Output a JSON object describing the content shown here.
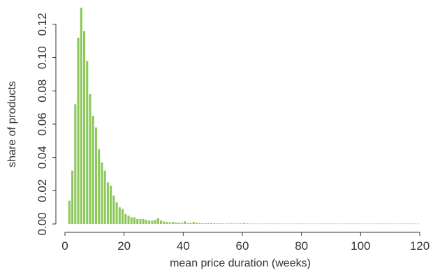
{
  "chart_data": {
    "type": "bar",
    "title": "",
    "xlabel": "mean price duration (weeks)",
    "ylabel": "share of products",
    "xlim": [
      0,
      120
    ],
    "ylim": [
      0,
      0.13
    ],
    "x_ticks": [
      0,
      20,
      40,
      60,
      80,
      100,
      120
    ],
    "y_ticks": [
      0.0,
      0.02,
      0.04,
      0.06,
      0.08,
      0.1,
      0.12
    ],
    "x_tick_labels": [
      "0",
      "20",
      "40",
      "60",
      "80",
      "100",
      "120"
    ],
    "y_tick_labels": [
      "0.00",
      "0.02",
      "0.04",
      "0.06",
      "0.08",
      "0.10",
      "0.12"
    ],
    "bar_color": "#8cc85a",
    "grid": false,
    "series": [
      {
        "x": [
          1.5,
          2.5,
          3.5,
          4.5,
          5.5,
          6.5,
          7.5,
          8.5,
          9.5,
          10.5,
          11.5,
          12.5,
          13.5,
          14.5,
          15.5,
          16.5,
          17.5,
          18.5,
          19.5,
          20.5,
          21.5,
          22.5,
          23.5,
          24.5,
          25.5,
          26.5,
          27.5,
          28.5,
          29.5,
          30.5,
          31.5,
          32.5,
          33.5,
          34.5,
          35.5,
          36.5,
          37.5,
          38.5,
          39.5,
          40.5,
          41.5,
          42.5,
          43.5,
          44.5,
          45.5,
          46.5,
          47.5,
          48.5,
          49.5,
          50.5,
          51.5,
          52.5,
          53.5,
          54.5,
          55.5,
          56.5,
          57.5,
          58.5,
          59.5,
          60.5,
          61.5,
          62.5,
          63.5,
          64.5,
          65.5,
          66.5,
          67.5,
          68.5,
          69.5,
          70.5,
          71.5,
          72.5,
          73.5,
          74.5,
          75.5,
          76.5,
          77.5,
          78.5,
          79.5,
          80.5,
          81.5,
          82.5,
          83.5,
          84.5,
          85.5,
          86.5,
          87.5,
          88.5,
          89.5,
          90.5,
          91.5,
          92.5,
          93.5,
          94.5,
          95.5,
          96.5,
          97.5,
          98.5,
          99.5,
          100.5,
          101.5,
          102.5,
          103.5,
          104.5,
          105.5,
          106.5,
          107.5,
          108.5,
          109.5,
          110.5,
          111.5,
          112.5,
          113.5,
          114.5,
          115.5,
          116.5,
          117.5,
          118.5,
          119.5
        ],
        "values": [
          0.014,
          0.032,
          0.072,
          0.112,
          0.13,
          0.116,
          0.098,
          0.078,
          0.065,
          0.058,
          0.045,
          0.037,
          0.032,
          0.025,
          0.023,
          0.017,
          0.013,
          0.01,
          0.009,
          0.006,
          0.005,
          0.004,
          0.004,
          0.003,
          0.003,
          0.003,
          0.0025,
          0.002,
          0.002,
          0.0025,
          0.0035,
          0.0022,
          0.0015,
          0.0012,
          0.001,
          0.0012,
          0.0009,
          0.0008,
          0.0008,
          0.0016,
          0.0006,
          0.0006,
          0.0012,
          0.0007,
          0.0005,
          0.0005,
          0.0004,
          0.0004,
          0.0004,
          0.0004,
          0.0003,
          0.0003,
          0.0003,
          0.0003,
          0.0003,
          0.0003,
          0.0003,
          0.0003,
          0.0003,
          0.0006,
          0.0003,
          0.0002,
          0.0002,
          0.0002,
          0.0002,
          0.0002,
          0.0002,
          0.0002,
          0.0002,
          0.0002,
          0.0002,
          0.0002,
          0.0002,
          0.0002,
          0.0002,
          0.0002,
          0.0002,
          0.0002,
          0.0002,
          0.0002,
          0.0002,
          0.0002,
          0.0002,
          0.0002,
          0.0002,
          0.0002,
          0.0002,
          0.0002,
          0.0002,
          0.0002,
          0.0002,
          0.0002,
          0.0002,
          0.0002,
          0.0002,
          0.0002,
          0.0002,
          0.0002,
          0.0002,
          0.0002,
          0.0002,
          0.0002,
          0.0002,
          0.0002,
          0.0002,
          0.0002,
          0.0002,
          0.0002,
          0.0002,
          0.0002,
          0.0002,
          0.0002,
          0.0002,
          0.0002,
          0.0002,
          0.0002,
          0.0002,
          0.0002,
          0.0002
        ]
      }
    ]
  }
}
